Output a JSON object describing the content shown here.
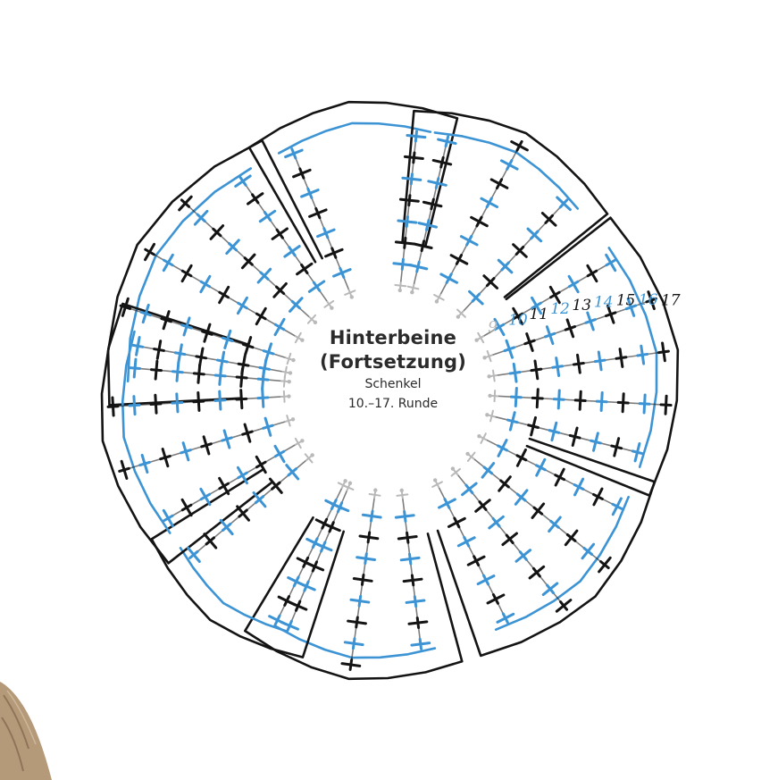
{
  "center": {
    "title_line1": "Hinterbeine",
    "title_line2": "(Fortsetzung)",
    "subtitle": "Schenkel",
    "rounds_label": "10.–17. Runde"
  },
  "round_labels": [
    "9",
    "10",
    "11",
    "12",
    "13",
    "14",
    "15",
    "16",
    "17"
  ],
  "colors": {
    "black_stitch": "#141414",
    "blue_stitch": "#3d94d4",
    "grey_stitch": "#b9b9b9",
    "dark_blue": "#1f63b4",
    "yarn": "#b59a7a",
    "text": "#2b2b2b"
  }
}
